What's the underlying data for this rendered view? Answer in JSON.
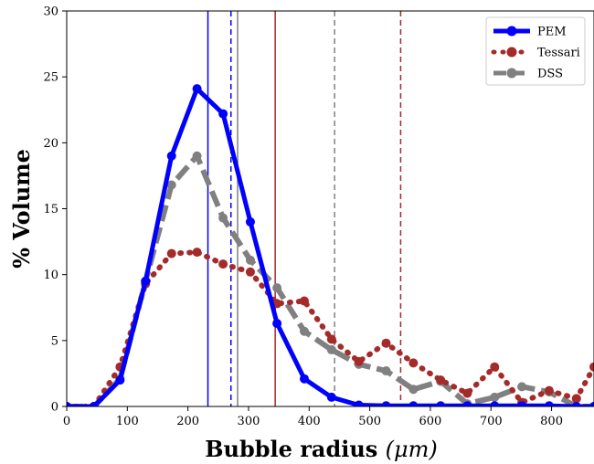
{
  "chart_data": {
    "type": "line",
    "title": "",
    "xlabel": "Bubble radius",
    "xlabel_unit": "(μm)",
    "ylabel": "% Volume",
    "xlim": [
      0,
      870
    ],
    "ylim": [
      0,
      30
    ],
    "xticks": [
      0,
      100,
      200,
      300,
      400,
      500,
      600,
      700,
      800
    ],
    "yticks": [
      0,
      5,
      10,
      15,
      20,
      25,
      30
    ],
    "grid": false,
    "legend_position": "top-right",
    "series": [
      {
        "name": "PEM",
        "color": "#0000ff",
        "style": "solid",
        "marker": "circle",
        "x": [
          0,
          45,
          88,
          130,
          173,
          215,
          258,
          303,
          347,
          392,
          437,
          482,
          527,
          572,
          617,
          661,
          706,
          751,
          796,
          841,
          870
        ],
        "y": [
          0,
          0,
          2,
          9.5,
          19,
          24.1,
          22.2,
          14,
          6.3,
          2.1,
          0.7,
          0.1,
          0.05,
          0.05,
          0.05,
          0.05,
          0.05,
          0.05,
          0.05,
          0,
          0
        ]
      },
      {
        "name": "Tessari",
        "color": "#a52a2a",
        "style": "dotted",
        "marker": "circle",
        "x": [
          0,
          45,
          88,
          130,
          173,
          215,
          258,
          303,
          347,
          392,
          437,
          482,
          527,
          572,
          617,
          661,
          706,
          751,
          796,
          841,
          870
        ],
        "y": [
          0,
          0,
          3,
          9.3,
          11.6,
          11.7,
          10.8,
          10.2,
          7.8,
          8,
          5.1,
          3.4,
          4.8,
          3.3,
          2,
          1,
          3,
          0.3,
          1.2,
          0.6,
          3
        ]
      },
      {
        "name": "DSS",
        "color": "#808080",
        "style": "dashed",
        "marker": "circle",
        "x": [
          0,
          45,
          88,
          130,
          173,
          215,
          258,
          303,
          347,
          392,
          437,
          482,
          527,
          572,
          617,
          661,
          706,
          751,
          796,
          841,
          870
        ],
        "y": [
          0,
          0,
          2.1,
          9.5,
          16.8,
          19,
          14.3,
          11.1,
          9,
          5.7,
          4.3,
          3.2,
          2.7,
          1.3,
          1.9,
          0.2,
          0.7,
          1.5,
          1.1,
          0,
          0
        ]
      }
    ],
    "vertical_lines": [
      {
        "x": 233,
        "color": "#0000ff",
        "style": "solid"
      },
      {
        "x": 271,
        "color": "#0000ff",
        "style": "dashed"
      },
      {
        "x": 282,
        "color": "#808080",
        "style": "solid"
      },
      {
        "x": 344,
        "color": "#a52a2a",
        "style": "solid"
      },
      {
        "x": 442,
        "color": "#808080",
        "style": "dashed"
      },
      {
        "x": 551,
        "color": "#a52a2a",
        "style": "dashed"
      }
    ]
  }
}
